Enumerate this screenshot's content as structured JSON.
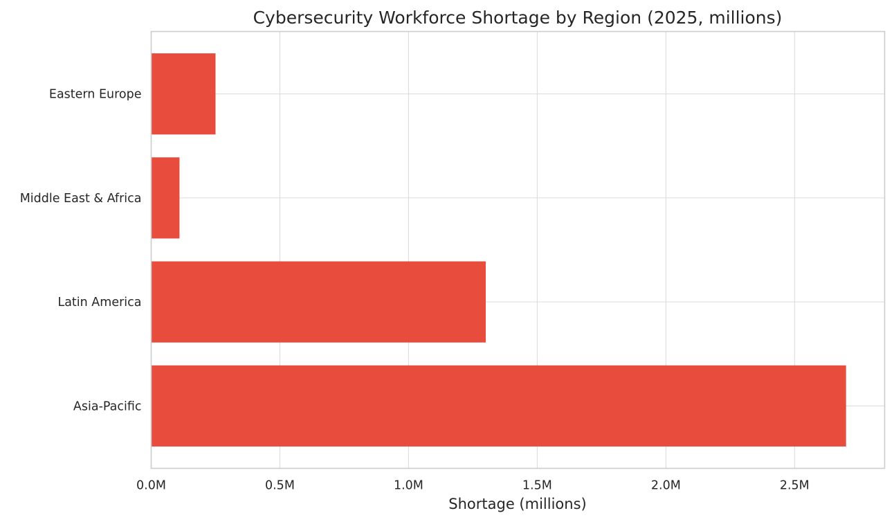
{
  "chart_data": {
    "type": "bar",
    "orientation": "horizontal",
    "title": "Cybersecurity Workforce Shortage by Region (2025, millions)",
    "xlabel": "Shortage (millions)",
    "ylabel": "",
    "categories": [
      "Asia-Pacific",
      "Latin America",
      "Middle East & Africa",
      "Eastern Europe"
    ],
    "values": [
      2.7,
      1.3,
      0.11,
      0.25
    ],
    "xlim": [
      0,
      2.85
    ],
    "xticks": [
      0,
      0.5,
      1.0,
      1.5,
      2.0,
      2.5
    ],
    "xtick_labels": [
      "0.0M",
      "0.5M",
      "1.0M",
      "1.5M",
      "2.0M",
      "2.5M"
    ],
    "bar_color": "#e74c3c",
    "grid": true
  }
}
